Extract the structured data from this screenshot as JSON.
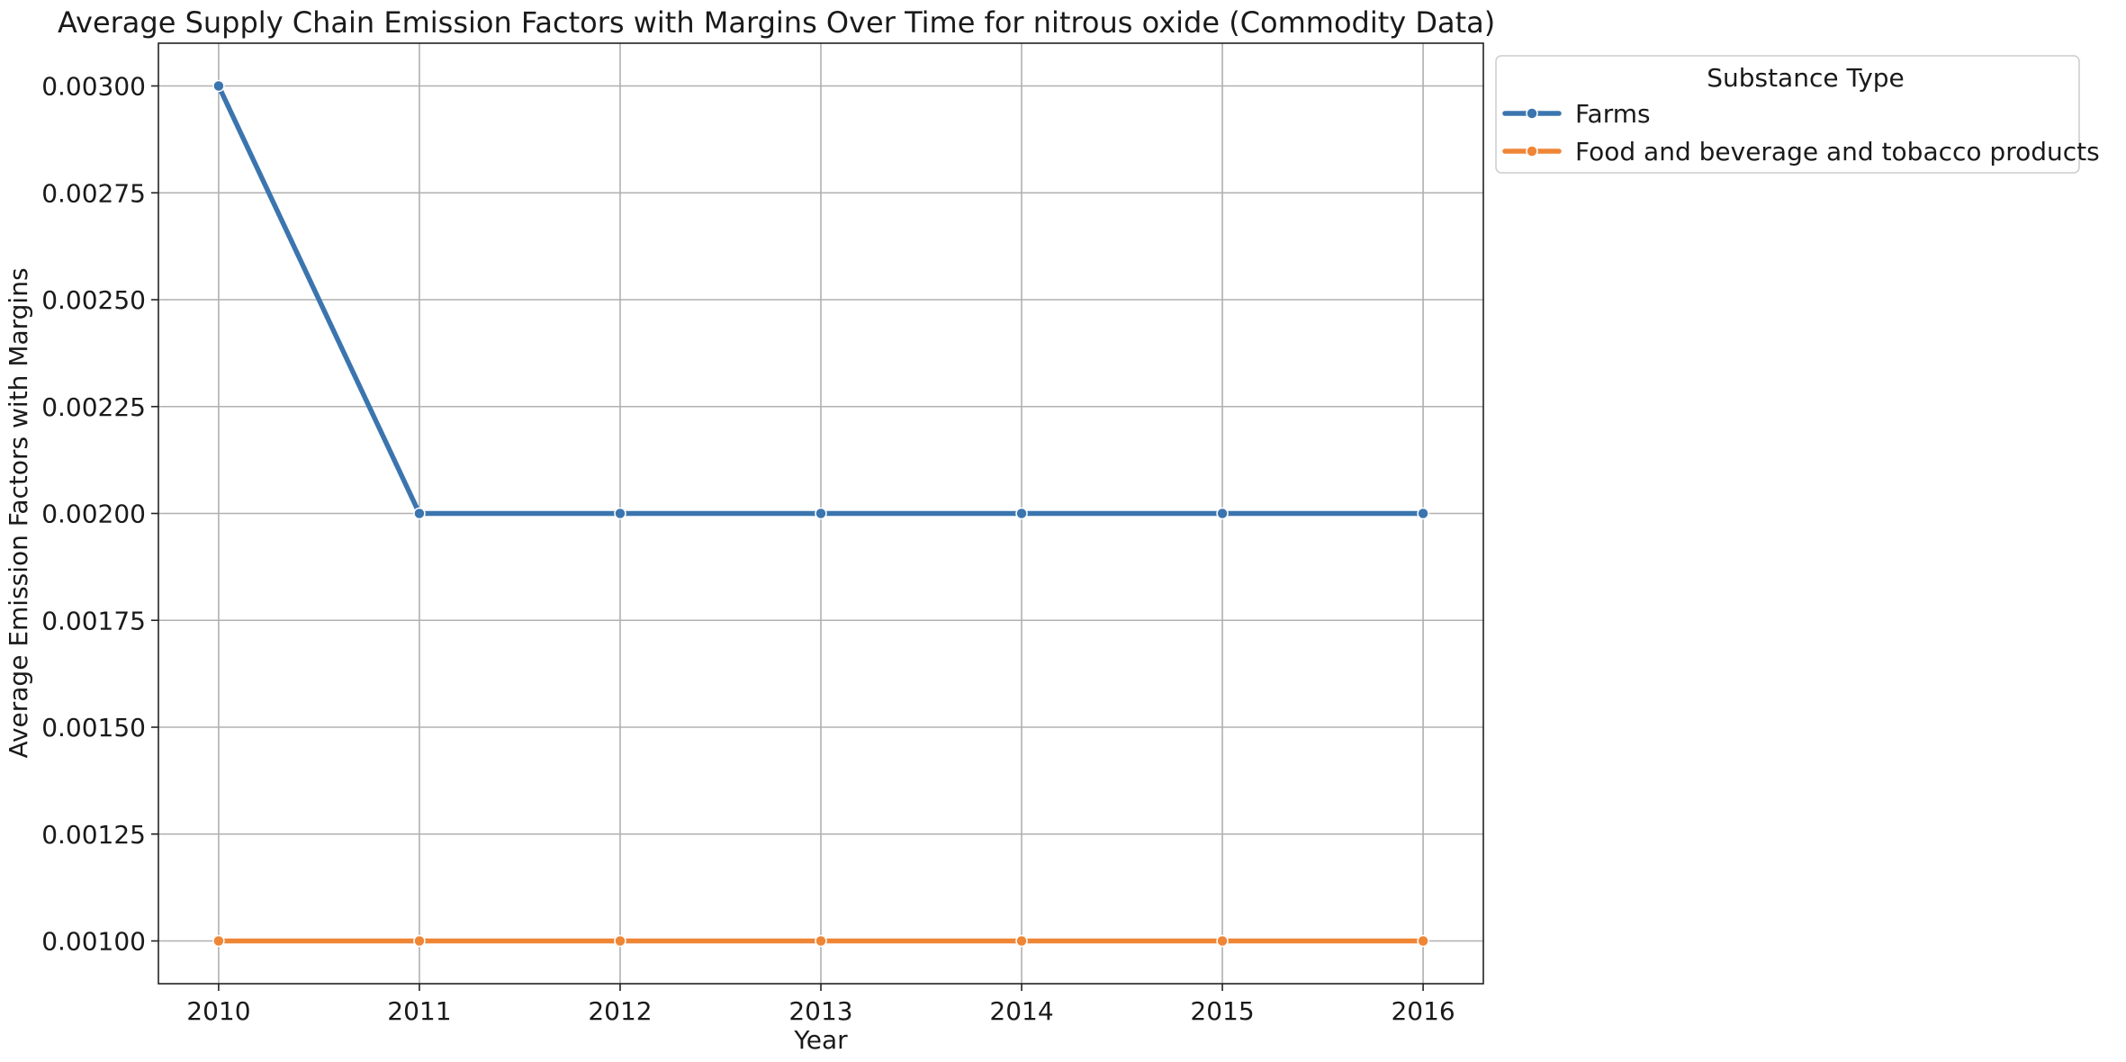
{
  "chart_data": {
    "type": "line",
    "title": "Average Supply Chain Emission Factors with Margins Over Time for nitrous oxide (Commodity Data)",
    "xlabel": "Year",
    "ylabel": "Average Emission Factors with Margins",
    "x": [
      2010,
      2011,
      2012,
      2013,
      2014,
      2015,
      2016
    ],
    "xlim": [
      2009.7,
      2016.3
    ],
    "ylim": [
      0.0009,
      0.0031
    ],
    "yticks": [
      0.001,
      0.00125,
      0.0015,
      0.00175,
      0.002,
      0.00225,
      0.0025,
      0.00275,
      0.003
    ],
    "ytick_labels": [
      "0.00100",
      "0.00125",
      "0.00150",
      "0.00175",
      "0.00200",
      "0.00225",
      "0.00250",
      "0.00275",
      "0.00300"
    ],
    "xtick_labels": [
      "2010",
      "2011",
      "2012",
      "2013",
      "2014",
      "2015",
      "2016"
    ],
    "grid": true,
    "legend": {
      "title": "Substance Type",
      "placement": "outside-top-right"
    },
    "series": [
      {
        "name": "Farms",
        "color": "#3b75af",
        "values": [
          0.003,
          0.002,
          0.002,
          0.002,
          0.002,
          0.002,
          0.002
        ]
      },
      {
        "name": "Food and beverage and tobacco products",
        "color": "#ef8636",
        "values": [
          0.001,
          0.001,
          0.001,
          0.001,
          0.001,
          0.001,
          0.001
        ]
      }
    ]
  }
}
